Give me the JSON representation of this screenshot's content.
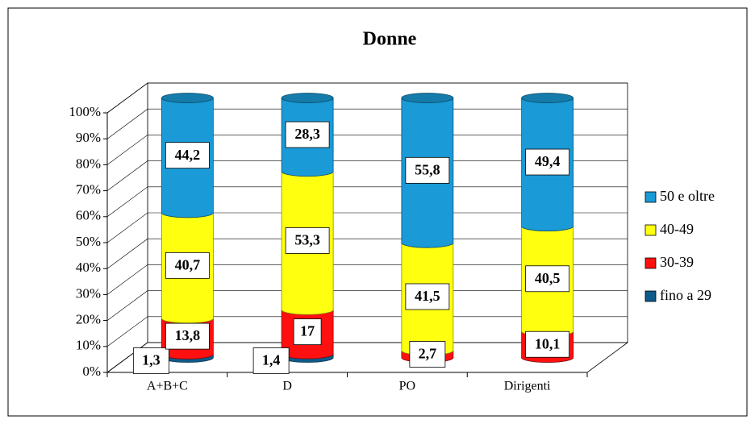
{
  "chart_data": {
    "type": "bar",
    "stacked": true,
    "title": "Donne",
    "categories": [
      "A+B+C",
      "D",
      "PO",
      "Dirigenti"
    ],
    "series": [
      {
        "name": "fino a 29",
        "color": "#0f5a8a",
        "values": [
          1.3,
          1.4,
          0,
          0
        ],
        "value_labels": [
          "1,3",
          "1,4",
          null,
          null
        ]
      },
      {
        "name": "30-39",
        "color": "#ff1010",
        "values": [
          13.8,
          17,
          2.7,
          10.1
        ],
        "value_labels": [
          "13,8",
          "17",
          "2,7",
          "10,1"
        ]
      },
      {
        "name": "40-49",
        "color": "#ffff10",
        "values": [
          40.7,
          53.3,
          41.5,
          40.5
        ],
        "value_labels": [
          "40,7",
          "53,3",
          "41,5",
          "40,5"
        ]
      },
      {
        "name": "50 e oltre",
        "color": "#1a9ad6",
        "values": [
          44.2,
          28.3,
          55.8,
          49.4
        ],
        "value_labels": [
          "44,2",
          "28,3",
          "55,8",
          "49,4"
        ]
      }
    ],
    "ylim": [
      0,
      100
    ],
    "yticks": [
      {
        "value": 0,
        "label": "0%"
      },
      {
        "value": 10,
        "label": "10%"
      },
      {
        "value": 20,
        "label": "20%"
      },
      {
        "value": 30,
        "label": "30%"
      },
      {
        "value": 40,
        "label": "40%"
      },
      {
        "value": 50,
        "label": "50%"
      },
      {
        "value": 60,
        "label": "60%"
      },
      {
        "value": 70,
        "label": "70%"
      },
      {
        "value": 80,
        "label": "80%"
      },
      {
        "value": 90,
        "label": "90%"
      },
      {
        "value": 100,
        "label": "100%"
      }
    ],
    "grid": true,
    "legend": "right"
  }
}
